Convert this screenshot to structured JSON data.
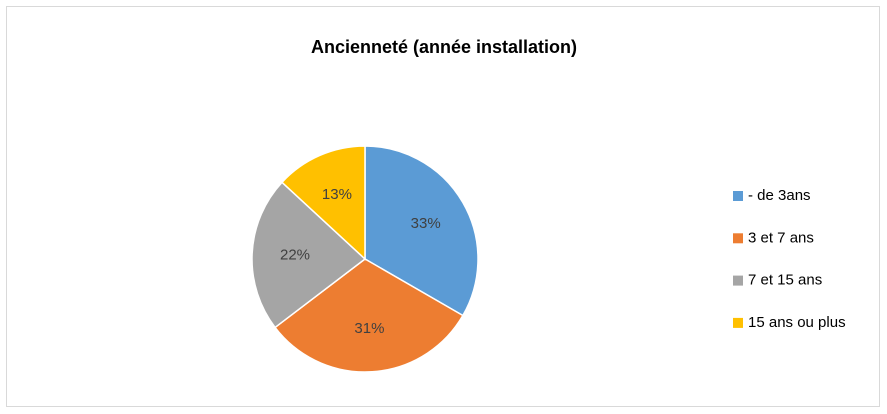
{
  "chart_data": {
    "type": "pie",
    "title": "Ancienneté (année installation)",
    "categories": [
      "- de 3ans",
      "3 et 7 ans",
      "7 et 15 ans",
      "15 ans ou plus"
    ],
    "values": [
      33,
      31,
      22,
      13
    ],
    "value_labels": [
      "33%",
      "31%",
      "22%",
      "13%"
    ],
    "colors": [
      "#5b9bd5",
      "#ed7d31",
      "#a5a5a5",
      "#ffc000"
    ],
    "legend": "right"
  }
}
